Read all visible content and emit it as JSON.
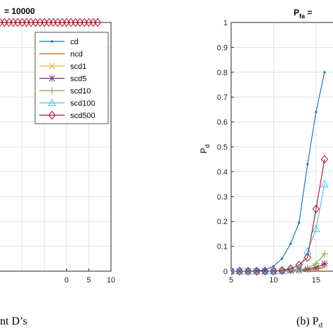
{
  "left_title": "= 10000",
  "right_title_main": "P",
  "right_title_sub": "fa",
  "right_title_rest": " =",
  "left_caption": "nt D’s",
  "right_caption_main": "(b) P",
  "right_caption_sub": "d",
  "right_ylabel_main": "P",
  "right_ylabel_sub": "d",
  "colors": {
    "cd": "#0072BD",
    "ncd": "#D95319",
    "scd1": "#EDB120",
    "scd5": "#7E2F8E",
    "scd10": "#77AC30",
    "scd100": "#4DBEEE",
    "scd500": "#A2142F"
  },
  "chart_data": [
    {
      "type": "line",
      "title": "= 10000",
      "xlim": [
        -15,
        10
      ],
      "xticks": [
        "0",
        "5",
        "10"
      ],
      "legend": [
        "cd",
        "ncd",
        "scd1",
        "scd5",
        "scd10",
        "scd100",
        "scd500"
      ],
      "legend_placement": "top-right",
      "series": [
        {
          "name": "scd500",
          "x": [
            -15,
            -14,
            -13,
            -12,
            -11,
            -10,
            -9,
            -8,
            -7,
            -6,
            -5,
            -4,
            -3,
            -2,
            -1,
            0,
            1,
            2,
            3,
            4,
            5,
            6,
            7
          ],
          "y_note": "all at top of axis"
        }
      ],
      "grid": true
    },
    {
      "type": "line",
      "title": "P_fa =",
      "xlabel": "",
      "ylabel": "P_d",
      "xlim": [
        5,
        17
      ],
      "ylim": [
        0,
        1
      ],
      "xticks": [
        "5",
        "10",
        "15"
      ],
      "yticks": [
        "0",
        "0.1",
        "0.2",
        "0.3",
        "0.4",
        "0.5",
        "0.6",
        "0.7",
        "0.8",
        "0.9",
        "1"
      ],
      "grid": true,
      "series": [
        {
          "name": "cd",
          "x": [
            5,
            6,
            7,
            8,
            9,
            10,
            11,
            12,
            13,
            14,
            15,
            16
          ],
          "y": [
            0,
            0,
            0,
            0.002,
            0.005,
            0.02,
            0.05,
            0.11,
            0.195,
            0.43,
            0.64,
            0.8
          ]
        },
        {
          "name": "scd500",
          "x": [
            5,
            6,
            7,
            8,
            9,
            10,
            11,
            12,
            13,
            14,
            15,
            16
          ],
          "y": [
            0,
            0,
            0,
            0,
            0,
            0,
            0.003,
            0.01,
            0.025,
            0.055,
            0.25,
            0.45
          ]
        },
        {
          "name": "scd100",
          "x": [
            5,
            6,
            7,
            8,
            9,
            10,
            11,
            12,
            13,
            14,
            15,
            16
          ],
          "y": [
            0,
            0,
            0,
            0,
            0,
            0,
            0.002,
            0.005,
            0.012,
            0.08,
            0.17,
            0.35
          ]
        },
        {
          "name": "scd10",
          "x": [
            5,
            6,
            7,
            8,
            9,
            10,
            11,
            12,
            13,
            14,
            15,
            16
          ],
          "y": [
            0,
            0,
            0,
            0,
            0,
            0,
            0,
            0.002,
            0.005,
            0.012,
            0.03,
            0.07
          ]
        },
        {
          "name": "scd5",
          "x": [
            5,
            6,
            7,
            8,
            9,
            10,
            11,
            12,
            13,
            14,
            15,
            16
          ],
          "y": [
            0,
            0,
            0,
            0,
            0,
            0,
            0,
            0.002,
            0.004,
            0.008,
            0.015,
            0.03
          ]
        },
        {
          "name": "scd1",
          "x": [
            5,
            6,
            7,
            8,
            9,
            10,
            11,
            12,
            13,
            14,
            15,
            16
          ],
          "y": [
            0,
            0,
            0,
            0,
            0,
            0,
            0,
            0.001,
            0.003,
            0.006,
            0.012,
            0.02
          ]
        },
        {
          "name": "ncd",
          "x": [
            5,
            6,
            7,
            8,
            9,
            10,
            11,
            12,
            13,
            14,
            15,
            16
          ],
          "y": [
            0,
            0,
            0,
            0,
            0,
            0,
            0,
            0.001,
            0.002,
            0.004,
            0.008,
            0.015
          ]
        }
      ]
    }
  ]
}
